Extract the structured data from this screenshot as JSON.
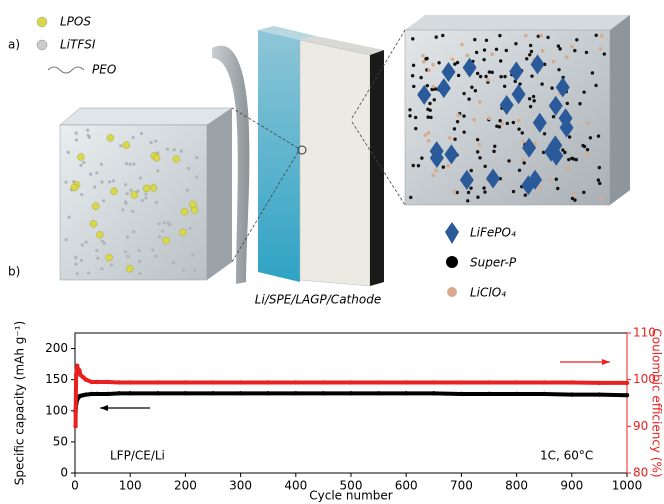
{
  "figure": {
    "panel_labels": [
      "a)",
      "b)"
    ],
    "legend_top": [
      "LPOS",
      "LiTFSI",
      "PEO"
    ],
    "legend_bottom": [
      "LiFePO₄",
      "Super-P",
      "LiClO₄"
    ],
    "caption": "Li/SPE/LAGP/Cathode"
  },
  "chart_data": {
    "type": "line",
    "xlabel": "Cycle number",
    "ylabel": "Specific capacity (mAh g⁻¹)",
    "y2label": "Coulombic efficiency (%)",
    "annotations": [
      "LFP/CE/Li",
      "1C, 60°C"
    ],
    "x": [
      1,
      2,
      4,
      6,
      8,
      10,
      15,
      20,
      30,
      40,
      60,
      80,
      100,
      150,
      200,
      250,
      300,
      350,
      400,
      450,
      500,
      550,
      600,
      650,
      700,
      750,
      800,
      850,
      900,
      950,
      1000
    ],
    "series": [
      {
        "color": "#000000",
        "values": [
          98,
          110,
          118,
          121,
          123,
          124,
          125,
          126,
          127,
          127,
          127,
          128,
          128,
          128,
          128,
          128,
          128,
          128,
          128,
          128,
          128,
          128,
          128,
          128,
          127,
          127,
          127,
          127,
          126,
          126,
          125
        ]
      },
      {
        "color": "#e8201f",
        "axis": "y2",
        "values": [
          90,
          101,
          103,
          102,
          102,
          101,
          100.5,
          100,
          99.5,
          99.5,
          99.5,
          99.4,
          99.4,
          99.4,
          99.4,
          99.4,
          99.4,
          99.4,
          99.4,
          99.4,
          99.4,
          99.4,
          99.4,
          99.4,
          99.4,
          99.4,
          99.4,
          99.4,
          99.4,
          99.3,
          99.3
        ]
      }
    ],
    "xlim": [
      0,
      1000
    ],
    "xticks": [
      0,
      100,
      200,
      300,
      400,
      500,
      600,
      700,
      800,
      900,
      1000
    ],
    "ylim": [
      0,
      225
    ],
    "yticks": [
      0,
      50,
      100,
      150,
      200
    ],
    "y2lim": [
      80,
      110
    ],
    "y2ticks": [
      80,
      90,
      100,
      110
    ]
  }
}
